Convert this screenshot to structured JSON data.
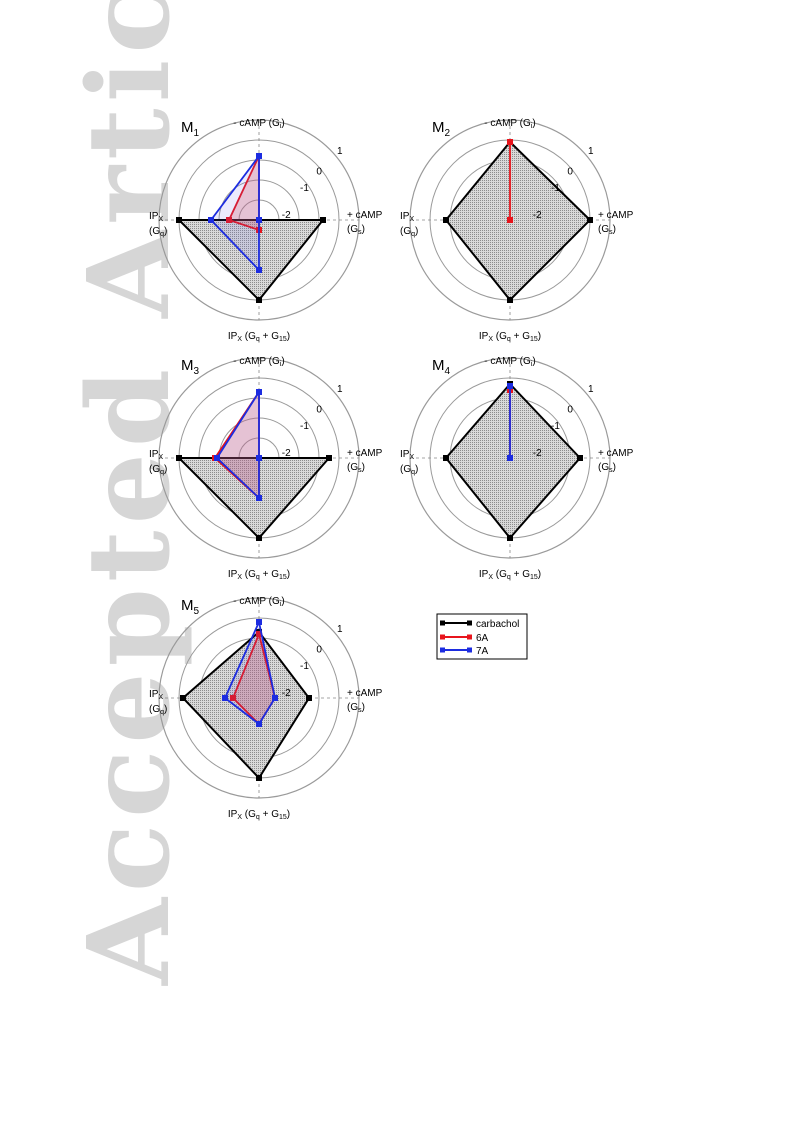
{
  "watermark": "Accepted Article",
  "axes": {
    "top": "- cAMP (G",
    "top_sub": "i",
    "top_tail": ")",
    "right_line1": "+ cAMP",
    "right_line2": "(G",
    "right_sub": "s",
    "right_tail": ")",
    "left_line1": "IP",
    "left_line1_sub": "X",
    "left_line2": "(G",
    "left_line2_sub": "q",
    "left_tail": ")",
    "bottom": "IP",
    "bottom_sub1": "X",
    "bottom_mid": " (G",
    "bottom_sub2": "q",
    "bottom_plus": " + G",
    "bottom_sub3": "15",
    "bottom_tail": ")"
  },
  "ring_labels": [
    "-2",
    "-1",
    "0",
    "1"
  ],
  "legend": {
    "entries": [
      {
        "name": "carbachol",
        "color": "#000000"
      },
      {
        "name": "6A",
        "color": "#e8141c"
      },
      {
        "name": "7A",
        "color": "#1c2ce0"
      }
    ]
  },
  "chart_data": [
    {
      "type": "radar",
      "title": "M",
      "title_sub": "1",
      "axes_order": [
        "- cAMP (Gi)",
        "+ cAMP (Gs)",
        "IPX (Gq + G15)",
        "IPX (Gq)"
      ],
      "rlim": [
        -3,
        2
      ],
      "series": [
        {
          "name": "carbachol",
          "values": [
            -3,
            0.2,
            1,
            1
          ]
        },
        {
          "name": "6A",
          "values": [
            0.2,
            -3,
            -2.5,
            -1.5
          ]
        },
        {
          "name": "7A",
          "values": [
            0.2,
            -3,
            -0.5,
            -0.6
          ]
        }
      ]
    },
    {
      "type": "radar",
      "title": "M",
      "title_sub": "2",
      "axes_order": [
        "- cAMP (Gi)",
        "+ cAMP (Gs)",
        "IPX (Gq + G15)",
        "IPX (Gq)"
      ],
      "rlim": [
        -3,
        2
      ],
      "series": [
        {
          "name": "carbachol",
          "values": [
            0.9,
            1,
            1,
            0.2
          ]
        },
        {
          "name": "6A",
          "values": [
            0.9,
            -3,
            -3,
            -3
          ]
        }
      ]
    },
    {
      "type": "radar",
      "title": "M",
      "title_sub": "3",
      "axes_order": [
        "- cAMP (Gi)",
        "+ cAMP (Gs)",
        "IPX (Gq + G15)",
        "IPX (Gq)"
      ],
      "rlim": [
        -3,
        2
      ],
      "series": [
        {
          "name": "carbachol",
          "values": [
            -3,
            0.5,
            1,
            1
          ]
        },
        {
          "name": "6A",
          "values": [
            0.3,
            -3,
            -1,
            -0.8
          ]
        },
        {
          "name": "7A",
          "values": [
            0.3,
            -3,
            -1,
            -0.9
          ]
        }
      ]
    },
    {
      "type": "radar",
      "title": "M",
      "title_sub": "4",
      "axes_order": [
        "- cAMP (Gi)",
        "+ cAMP (Gs)",
        "IPX (Gq + G15)",
        "IPX (Gq)"
      ],
      "rlim": [
        -3,
        2
      ],
      "series": [
        {
          "name": "carbachol",
          "values": [
            0.7,
            0.5,
            1,
            0.2
          ]
        },
        {
          "name": "6A",
          "values": [
            0.4,
            -3,
            -3,
            -3
          ]
        },
        {
          "name": "7A",
          "values": [
            0.6,
            -3,
            -3,
            -3
          ]
        }
      ]
    },
    {
      "type": "radar",
      "title": "M",
      "title_sub": "5",
      "axes_order": [
        "- cAMP (Gi)",
        "+ cAMP (Gs)",
        "IPX (Gq + G15)",
        "IPX (Gq)"
      ],
      "rlim": [
        -3,
        2
      ],
      "series": [
        {
          "name": "carbachol",
          "values": [
            0.3,
            -0.5,
            1,
            0.8
          ]
        },
        {
          "name": "6A",
          "values": [
            0.2,
            -2.2,
            -1.7,
            -1.7
          ]
        },
        {
          "name": "7A",
          "values": [
            0.8,
            -2.2,
            -1.7,
            -1.3
          ]
        }
      ]
    }
  ]
}
